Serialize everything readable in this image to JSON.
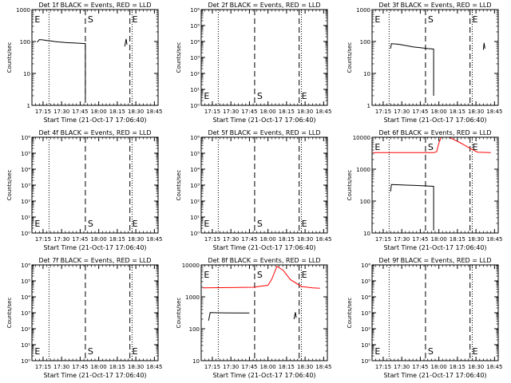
{
  "colors": {
    "events": "#000000",
    "lld": "#ff0000",
    "axes": "#000000"
  },
  "x_tick_labels": [
    "17:15",
    "17:30",
    "17:45",
    "18:00",
    "18:15",
    "18:30",
    "18:45"
  ],
  "chart_data": [
    {
      "id": "p1",
      "type": "line",
      "title": "Det 1f BLACK = Events, RED = LLD",
      "xlabel": "Start Time (21-Oct-17 17:06:40)",
      "ylabel": "Counts/sec",
      "yscale": "log",
      "ylim": [
        1,
        1000
      ],
      "y_tick_labels": [
        "1",
        "10",
        "100",
        "1000"
      ],
      "marker_labels": {
        "start": "E",
        "mid": "S",
        "end": "E"
      },
      "series": [
        {
          "color": "black",
          "points": [
            [
              17.17,
              95
            ],
            [
              17.2,
              115
            ],
            [
              17.25,
              112
            ],
            [
              17.3,
              108
            ],
            [
              17.35,
              104
            ],
            [
              17.4,
              100
            ],
            [
              17.45,
              97
            ],
            [
              17.5,
              95
            ],
            [
              17.55,
              93
            ],
            [
              17.6,
              91
            ],
            [
              17.65,
              90
            ],
            [
              17.7,
              89
            ],
            [
              17.75,
              88
            ],
            [
              17.82,
              86
            ],
            [
              17.82,
              1.6
            ]
          ]
        },
        {
          "color": "black",
          "points": [
            [
              18.35,
              70
            ],
            [
              18.37,
              120
            ],
            [
              18.38,
              80
            ]
          ]
        }
      ]
    },
    {
      "id": "p2",
      "type": "line",
      "title": "Det 2f BLACK = Events, RED = LLD",
      "xlabel": "Start Time (21-Oct-17 17:06:40)",
      "ylabel": "Counts/sec",
      "yscale": "log",
      "ylim": [
        1,
        1000000
      ],
      "y_tick_labels": [
        "10⁰",
        "10¹",
        "10²",
        "10³",
        "10⁴",
        "10⁵",
        "10⁶"
      ],
      "marker_labels": {
        "start": "E",
        "mid": "S",
        "end": "E"
      },
      "series": []
    },
    {
      "id": "p3",
      "type": "line",
      "title": "Det 3f BLACK = Events, RED = LLD",
      "xlabel": "Start Time (21-Oct-17 17:06:40)",
      "ylabel": "Counts/sec",
      "yscale": "log",
      "ylim": [
        1,
        1000
      ],
      "y_tick_labels": [
        "1",
        "10",
        "100",
        "1000"
      ],
      "marker_labels": {
        "start": "E",
        "mid": "S",
        "end": "E"
      },
      "series": [
        {
          "color": "black",
          "points": [
            [
              17.35,
              60
            ],
            [
              17.36,
              85
            ],
            [
              17.45,
              82
            ],
            [
              17.55,
              75
            ],
            [
              17.65,
              68
            ],
            [
              17.75,
              64
            ],
            [
              17.85,
              60
            ],
            [
              17.93,
              58
            ],
            [
              17.93,
              2
            ]
          ]
        },
        {
          "color": "black",
          "points": [
            [
              18.6,
              55
            ],
            [
              18.61,
              90
            ],
            [
              18.62,
              60
            ]
          ]
        }
      ]
    },
    {
      "id": "p4",
      "type": "line",
      "title": "Det 4f BLACK = Events, RED = LLD",
      "xlabel": "Start Time (21-Oct-17 17:06:40)",
      "ylabel": "Counts/sec",
      "yscale": "log",
      "ylim": [
        1,
        1000000
      ],
      "y_tick_labels": [
        "10⁰",
        "10¹",
        "10²",
        "10³",
        "10⁴",
        "10⁵",
        "10⁶"
      ],
      "marker_labels": {
        "start": "E",
        "mid": "S",
        "end": "E"
      },
      "series": []
    },
    {
      "id": "p5",
      "type": "line",
      "title": "Det 5f BLACK = Events, RED = LLD",
      "xlabel": "Start Time (21-Oct-17 17:06:40)",
      "ylabel": "Counts/sec",
      "yscale": "log",
      "ylim": [
        1,
        1000000
      ],
      "y_tick_labels": [
        "10⁰",
        "10¹",
        "10²",
        "10³",
        "10⁴",
        "10⁵",
        "10⁶"
      ],
      "marker_labels": {
        "start": "E",
        "mid": "S",
        "end": "E"
      },
      "series": []
    },
    {
      "id": "p6",
      "type": "line",
      "title": "Det 6f BLACK = Events, RED = LLD",
      "xlabel": "Start Time (21-Oct-17 17:06:40)",
      "ylabel": "Counts/sec",
      "yscale": "log",
      "ylim": [
        10,
        10000
      ],
      "y_tick_labels": [
        "10",
        "100",
        "1000",
        "10000"
      ],
      "marker_labels": {
        "start": "E",
        "mid": "S",
        "end": "E"
      },
      "series": [
        {
          "color": "black",
          "points": [
            [
              17.35,
              200
            ],
            [
              17.36,
              330
            ],
            [
              17.5,
              320
            ],
            [
              17.65,
              310
            ],
            [
              17.8,
              300
            ],
            [
              17.93,
              290
            ],
            [
              17.93,
              12
            ]
          ]
        },
        {
          "color": "red",
          "points": [
            [
              17.11,
              3300
            ],
            [
              17.5,
              3300
            ],
            [
              17.93,
              3300
            ],
            [
              17.97,
              3500
            ],
            [
              18.0,
              6500
            ],
            [
              18.05,
              13000
            ],
            [
              18.12,
              10500
            ],
            [
              18.2,
              8500
            ],
            [
              18.3,
              6500
            ],
            [
              18.42,
              4500
            ],
            [
              18.52,
              3400
            ],
            [
              18.7,
              3300
            ]
          ]
        }
      ]
    },
    {
      "id": "p7",
      "type": "line",
      "title": "Det 7f BLACK = Events, RED = LLD",
      "xlabel": "Start Time (21-Oct-17 17:06:40)",
      "ylabel": "Counts/sec",
      "yscale": "log",
      "ylim": [
        1,
        1000000
      ],
      "y_tick_labels": [
        "10⁰",
        "10¹",
        "10²",
        "10³",
        "10⁴",
        "10⁵",
        "10⁶"
      ],
      "marker_labels": {
        "start": "E",
        "mid": "S",
        "end": "E"
      },
      "series": []
    },
    {
      "id": "p8",
      "type": "line",
      "title": "Det 8f BLACK = Events, RED = LLD",
      "xlabel": "Start Time (21-Oct-17 17:06:40)",
      "ylabel": "Counts/sec",
      "yscale": "log",
      "ylim": [
        10,
        10000
      ],
      "y_tick_labels": [
        "10",
        "100",
        "1000",
        "10000"
      ],
      "marker_labels": {
        "start": "E",
        "mid": "S",
        "end": "E"
      },
      "series": [
        {
          "color": "black",
          "points": [
            [
              17.2,
              180
            ],
            [
              17.22,
              320
            ],
            [
              17.4,
              315
            ],
            [
              17.6,
              312
            ],
            [
              17.75,
              310
            ]
          ]
        },
        {
          "color": "black",
          "points": [
            [
              18.35,
              200
            ],
            [
              18.37,
              330
            ],
            [
              18.38,
              220
            ]
          ]
        },
        {
          "color": "red",
          "points": [
            [
              17.12,
              1900
            ],
            [
              17.5,
              1950
            ],
            [
              17.8,
              2000
            ],
            [
              18.0,
              2300
            ],
            [
              18.05,
              3500
            ],
            [
              18.12,
              9000
            ],
            [
              18.2,
              7000
            ],
            [
              18.3,
              3500
            ],
            [
              18.45,
              2100
            ],
            [
              18.6,
              1900
            ],
            [
              18.7,
              1850
            ]
          ]
        }
      ]
    },
    {
      "id": "p9",
      "type": "line",
      "title": "Det 9f BLACK = Events, RED = LLD",
      "xlabel": "Start Time (21-Oct-17 17:06:40)",
      "ylabel": "Counts/sec",
      "yscale": "log",
      "ylim": [
        1,
        1000000
      ],
      "y_tick_labels": [
        "10⁰",
        "10¹",
        "10²",
        "10³",
        "10⁴",
        "10⁵",
        "10⁶"
      ],
      "marker_labels": {
        "start": "E",
        "mid": "S",
        "end": "E"
      },
      "series": []
    }
  ]
}
